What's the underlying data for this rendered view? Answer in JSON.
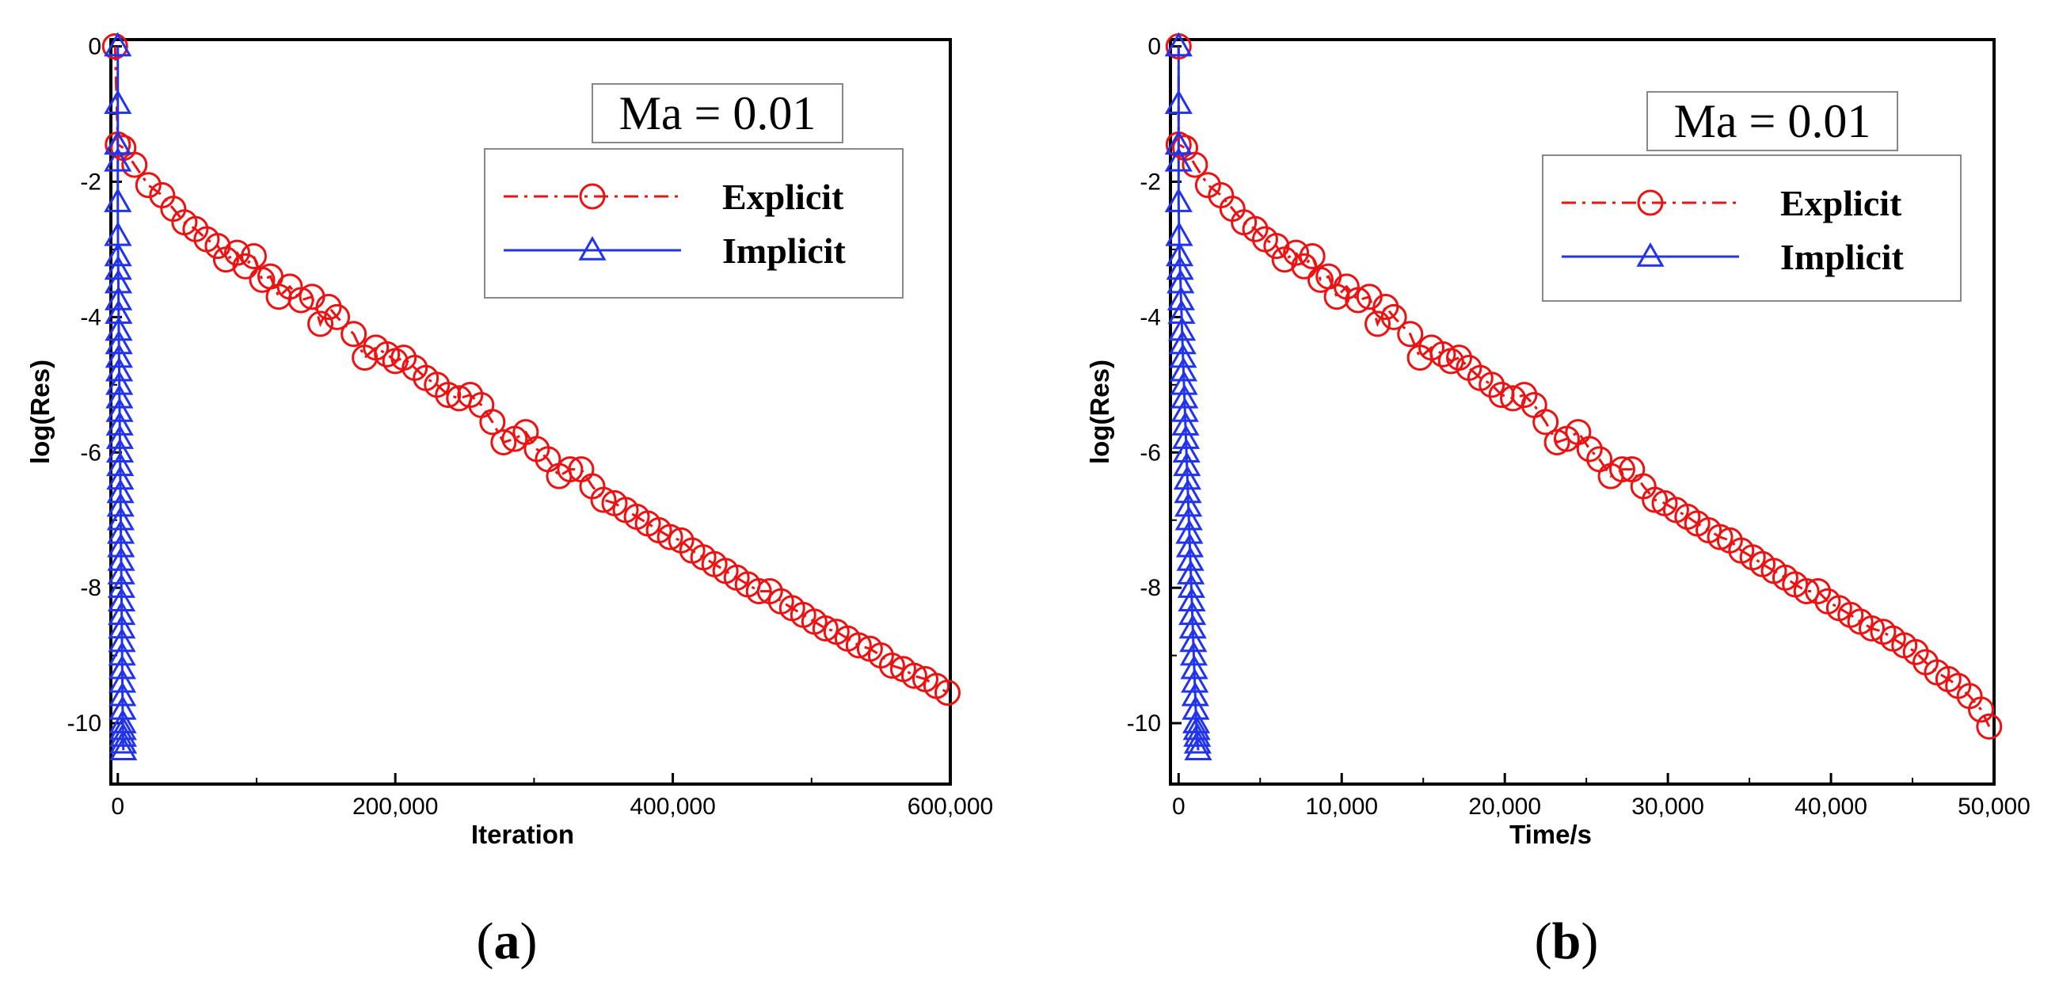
{
  "chart_data": [
    {
      "type": "line",
      "panel_label": "a",
      "annotation": "Ma = 0.01",
      "xlabel": "Iteration",
      "ylabel": "log(Res)",
      "xlim": [
        -5000,
        600000
      ],
      "ylim": [
        -10.9,
        0.1
      ],
      "xticks": [
        0,
        200000,
        400000,
        600000
      ],
      "xtick_labels": [
        "0",
        "200,000",
        "400,000",
        "600,000"
      ],
      "yticks": [
        0,
        -2,
        -4,
        -6,
        -8,
        -10
      ],
      "ytick_labels": [
        "0",
        "-2",
        "-4",
        "-6",
        "-8",
        "-10"
      ],
      "legend_position": "top-right",
      "series": [
        {
          "name": "Explicit",
          "color": "#ee1111",
          "marker": "circle",
          "line_style": "dash-dot",
          "x": [
            -2000,
            0,
            4000,
            12000,
            22000,
            32000,
            40000,
            48000,
            56000,
            64000,
            72000,
            78000,
            86000,
            92000,
            98000,
            104000,
            110000,
            116000,
            124000,
            132000,
            140000,
            146000,
            152000,
            158000,
            170000,
            178000,
            186000,
            194000,
            200000,
            206000,
            214000,
            222000,
            230000,
            238000,
            246000,
            254000,
            262000,
            270000,
            278000,
            286000,
            294000,
            302000,
            310000,
            318000,
            326000,
            334000,
            342000,
            350000,
            358000,
            366000,
            374000,
            382000,
            390000,
            398000,
            406000,
            414000,
            422000,
            430000,
            438000,
            446000,
            454000,
            462000,
            470000,
            478000,
            486000,
            494000,
            502000,
            510000,
            518000,
            526000,
            534000,
            542000,
            550000,
            558000,
            566000,
            574000,
            582000,
            590000,
            598000
          ],
          "y": [
            0,
            -1.45,
            -1.5,
            -1.75,
            -2.05,
            -2.2,
            -2.4,
            -2.6,
            -2.7,
            -2.85,
            -2.95,
            -3.15,
            -3.05,
            -3.25,
            -3.1,
            -3.45,
            -3.4,
            -3.7,
            -3.55,
            -3.75,
            -3.7,
            -4.1,
            -3.85,
            -4.0,
            -4.25,
            -4.6,
            -4.45,
            -4.55,
            -4.65,
            -4.6,
            -4.75,
            -4.9,
            -5.0,
            -5.15,
            -5.2,
            -5.15,
            -5.3,
            -5.55,
            -5.85,
            -5.8,
            -5.7,
            -5.95,
            -6.1,
            -6.35,
            -6.25,
            -6.25,
            -6.5,
            -6.7,
            -6.75,
            -6.85,
            -6.95,
            -7.05,
            -7.15,
            -7.25,
            -7.3,
            -7.45,
            -7.55,
            -7.65,
            -7.75,
            -7.85,
            -7.95,
            -8.05,
            -8.05,
            -8.2,
            -8.3,
            -8.4,
            -8.5,
            -8.6,
            -8.65,
            -8.75,
            -8.85,
            -8.9,
            -9.0,
            -9.15,
            -9.2,
            -9.3,
            -9.35,
            -9.45,
            -9.55
          ]
        },
        {
          "name": "Implicit",
          "color": "#2233ee",
          "marker": "triangle",
          "line_style": "solid",
          "x": [
            0,
            0,
            0,
            0,
            0,
            100,
            200,
            300,
            400,
            500,
            600,
            700,
            800,
            900,
            1000,
            1100,
            1200,
            1300,
            1400,
            1500,
            1600,
            1700,
            1800,
            1900,
            2000,
            2100,
            2200,
            2300,
            2400,
            2500,
            2600,
            2700,
            2800,
            2900,
            3000,
            3100,
            3200,
            3300,
            3400,
            3500,
            3600,
            3700,
            3800,
            3900,
            4000
          ],
          "y": [
            0,
            -0.85,
            -1.45,
            -1.7,
            -2.3,
            -2.8,
            -3.1,
            -3.3,
            -3.5,
            -3.75,
            -3.95,
            -4.2,
            -4.4,
            -4.6,
            -4.8,
            -5.0,
            -5.2,
            -5.4,
            -5.6,
            -5.8,
            -6.0,
            -6.2,
            -6.4,
            -6.6,
            -6.8,
            -7.0,
            -7.2,
            -7.4,
            -7.6,
            -7.8,
            -8.0,
            -8.2,
            -8.4,
            -8.6,
            -8.8,
            -9.0,
            -9.2,
            -9.4,
            -9.6,
            -9.8,
            -10.0,
            -10.1,
            -10.2,
            -10.3,
            -10.4
          ]
        }
      ]
    },
    {
      "type": "line",
      "panel_label": "b",
      "annotation": "Ma = 0.01",
      "xlabel": "Time/s",
      "ylabel": "log(Res)",
      "xlim": [
        -500,
        50000
      ],
      "ylim": [
        -10.9,
        0.1
      ],
      "xticks": [
        0,
        10000,
        20000,
        30000,
        40000,
        50000
      ],
      "xtick_labels": [
        "0",
        "10,000",
        "20,000",
        "30,000",
        "40,000",
        "50,000"
      ],
      "yticks": [
        0,
        -2,
        -4,
        -6,
        -8,
        -10
      ],
      "ytick_labels": [
        "0",
        "-2",
        "-4",
        "-6",
        "-8",
        "-10"
      ],
      "legend_position": "top-right",
      "series": [
        {
          "name": "Explicit",
          "color": "#ee1111",
          "marker": "circle",
          "line_style": "dash-dot",
          "x": [
            0,
            0,
            400,
            1000,
            1800,
            2600,
            3300,
            4000,
            4700,
            5300,
            6000,
            6500,
            7200,
            7700,
            8200,
            8700,
            9200,
            9700,
            10300,
            11000,
            11700,
            12200,
            12700,
            13200,
            14200,
            14800,
            15500,
            16200,
            16700,
            17200,
            17800,
            18500,
            19200,
            19800,
            20500,
            21200,
            21800,
            22500,
            23200,
            23800,
            24500,
            25200,
            25800,
            26500,
            27200,
            27800,
            28500,
            29200,
            29800,
            30500,
            31200,
            31800,
            32500,
            33200,
            33800,
            34500,
            35200,
            35800,
            36500,
            37200,
            37800,
            38500,
            39200,
            39800,
            40500,
            41200,
            41800,
            42500,
            43200,
            43800,
            44500,
            45200,
            45800,
            46500,
            47200,
            47800,
            48500,
            49200,
            49700
          ],
          "y": [
            0,
            -1.45,
            -1.5,
            -1.75,
            -2.05,
            -2.2,
            -2.4,
            -2.6,
            -2.7,
            -2.85,
            -2.95,
            -3.15,
            -3.05,
            -3.25,
            -3.1,
            -3.45,
            -3.4,
            -3.7,
            -3.55,
            -3.75,
            -3.7,
            -4.1,
            -3.85,
            -4.0,
            -4.25,
            -4.6,
            -4.45,
            -4.55,
            -4.65,
            -4.6,
            -4.75,
            -4.9,
            -5.0,
            -5.15,
            -5.2,
            -5.15,
            -5.3,
            -5.55,
            -5.85,
            -5.8,
            -5.7,
            -5.95,
            -6.1,
            -6.35,
            -6.25,
            -6.25,
            -6.5,
            -6.7,
            -6.75,
            -6.85,
            -6.95,
            -7.05,
            -7.15,
            -7.25,
            -7.3,
            -7.45,
            -7.55,
            -7.65,
            -7.75,
            -7.85,
            -7.95,
            -8.05,
            -8.05,
            -8.2,
            -8.3,
            -8.4,
            -8.5,
            -8.6,
            -8.65,
            -8.75,
            -8.85,
            -8.95,
            -9.1,
            -9.25,
            -9.35,
            -9.45,
            -9.6,
            -9.8,
            -10.05
          ]
        },
        {
          "name": "Implicit",
          "color": "#2233ee",
          "marker": "triangle",
          "line_style": "solid",
          "x": [
            0,
            0,
            0,
            0,
            0,
            30,
            60,
            90,
            120,
            150,
            180,
            210,
            240,
            270,
            300,
            330,
            360,
            390,
            420,
            450,
            480,
            510,
            540,
            570,
            600,
            630,
            660,
            690,
            720,
            750,
            780,
            810,
            840,
            870,
            900,
            930,
            960,
            990,
            1020,
            1050,
            1080,
            1110,
            1140,
            1170,
            1200
          ],
          "y": [
            0,
            -0.85,
            -1.45,
            -1.7,
            -2.3,
            -2.8,
            -3.1,
            -3.3,
            -3.5,
            -3.75,
            -3.95,
            -4.2,
            -4.4,
            -4.6,
            -4.8,
            -5.0,
            -5.2,
            -5.4,
            -5.6,
            -5.8,
            -6.0,
            -6.2,
            -6.4,
            -6.6,
            -6.8,
            -7.0,
            -7.2,
            -7.4,
            -7.6,
            -7.8,
            -8.0,
            -8.2,
            -8.4,
            -8.6,
            -8.8,
            -9.0,
            -9.2,
            -9.4,
            -9.6,
            -9.8,
            -10.0,
            -10.1,
            -10.2,
            -10.3,
            -10.4
          ]
        }
      ]
    }
  ]
}
